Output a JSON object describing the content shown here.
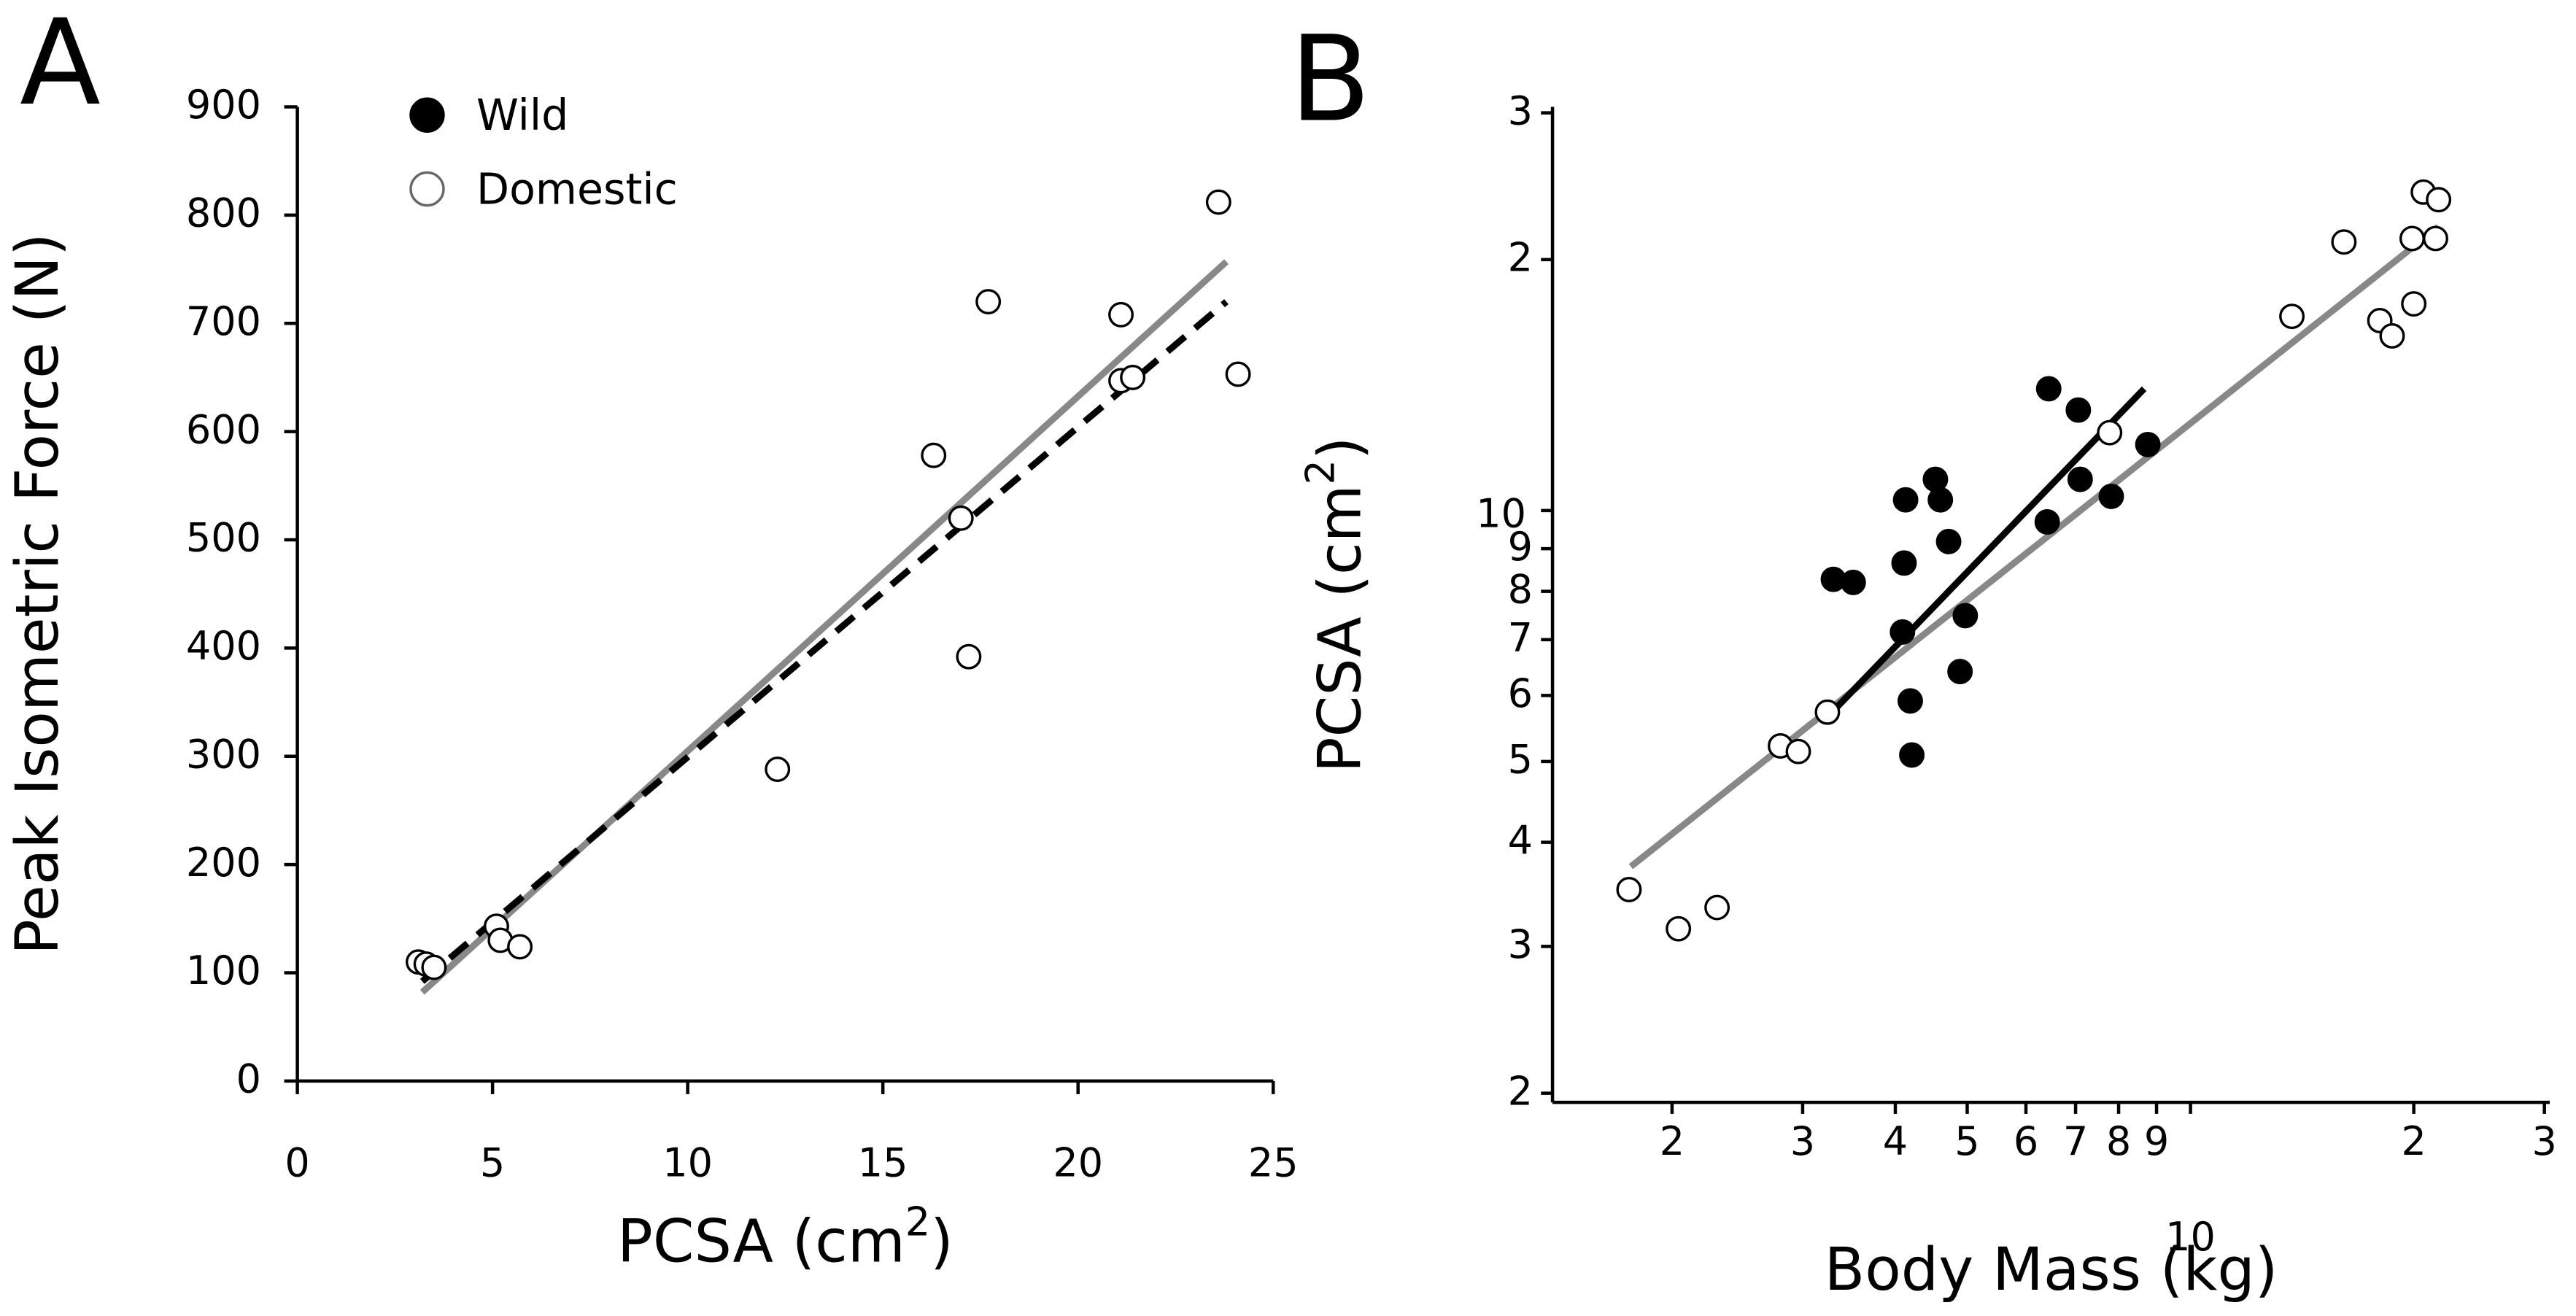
{
  "chart_data": [
    {
      "type": "scatter",
      "panel": "A",
      "xlabel": [
        "PCSA (cm",
        "2",
        ")"
      ],
      "ylabel": [
        "Peak Isometric Force (N)"
      ],
      "xscale": "linear",
      "yscale": "linear",
      "xlim": [
        0,
        25
      ],
      "ylim": [
        0,
        900
      ],
      "xticks": [
        0,
        5,
        10,
        15,
        20,
        25
      ],
      "yticks": [
        0,
        100,
        200,
        300,
        400,
        500,
        600,
        700,
        800,
        900
      ],
      "legend": "upper left",
      "series": [
        {
          "name": "Wild",
          "color": "#000000",
          "marker": "filled",
          "x": [],
          "y": []
        },
        {
          "name": "Domestic",
          "color": "#000000",
          "marker": "open",
          "x": [
            3.1,
            3.3,
            3.5,
            5.1,
            5.2,
            5.7,
            12.3,
            16.3,
            17.0,
            17.2,
            17.7,
            21.1,
            21.1,
            21.4,
            23.6,
            24.1
          ],
          "y": [
            110,
            108,
            105,
            143,
            130,
            124,
            288,
            578,
            520,
            392,
            720,
            708,
            647,
            650,
            812,
            653
          ]
        }
      ],
      "fits": [
        {
          "color": "#888888",
          "dash": false,
          "x": [
            3.2,
            23.8
          ],
          "y": [
            82,
            757
          ]
        },
        {
          "color": "#000000",
          "dash": true,
          "x": [
            3.2,
            23.8
          ],
          "y": [
            92,
            720
          ]
        }
      ]
    },
    {
      "type": "scatter",
      "panel": "B",
      "xlabel": [
        "Body Mass (kg)"
      ],
      "ylabel": [
        "PCSA (cm",
        "2",
        ")"
      ],
      "xscale": "log",
      "yscale": "log",
      "xlim": [
        1.38,
        30.5
      ],
      "ylim": [
        1.95,
        30.5
      ],
      "xticks": [
        2,
        3,
        4,
        5,
        6,
        7,
        8,
        9,
        10,
        {
          "value": 20,
          "label": "2"
        },
        {
          "value": 30,
          "label": "3"
        }
      ],
      "yticks": [
        2,
        3,
        4,
        5,
        6,
        7,
        8,
        9,
        10,
        {
          "value": 20,
          "label": "2"
        },
        {
          "value": 30,
          "label": "3"
        }
      ],
      "series": [
        {
          "name": "Wild",
          "color": "#000000",
          "marker": "filled",
          "x": [
            3.3,
            3.51,
            4.13,
            4.11,
            4.09,
            4.19,
            4.21,
            4.53,
            4.6,
            4.72,
            4.97,
            4.89,
            6.44,
            6.41,
            7.06,
            7.1,
            7.82,
            8.76
          ],
          "y": [
            8.27,
            8.2,
            10.3,
            8.65,
            7.15,
            5.91,
            5.09,
            10.9,
            10.3,
            9.18,
            7.48,
            6.41,
            14.0,
            9.69,
            13.2,
            10.9,
            10.4,
            12.0
          ]
        },
        {
          "name": "Domestic",
          "color": "#000000",
          "marker": "open",
          "x": [
            1.75,
            2.04,
            2.3,
            2.8,
            2.96,
            3.24,
            7.78,
            13.7,
            16.1,
            18.0,
            18.7,
            20.0,
            19.9,
            20.6,
            21.6,
            21.4
          ],
          "y": [
            3.51,
            3.15,
            3.34,
            5.22,
            5.14,
            5.73,
            12.4,
            17.1,
            21.0,
            16.9,
            16.2,
            17.7,
            21.2,
            24.1,
            23.6,
            21.2
          ]
        }
      ],
      "fits": [
        {
          "color": "#888888",
          "dash": false,
          "x": [
            1.76,
            21.6
          ],
          "y": [
            3.74,
            21.9
          ]
        },
        {
          "color": "#000000",
          "dash": false,
          "x": [
            3.3,
            8.66
          ],
          "y": [
            5.75,
            14.0
          ]
        }
      ]
    }
  ]
}
